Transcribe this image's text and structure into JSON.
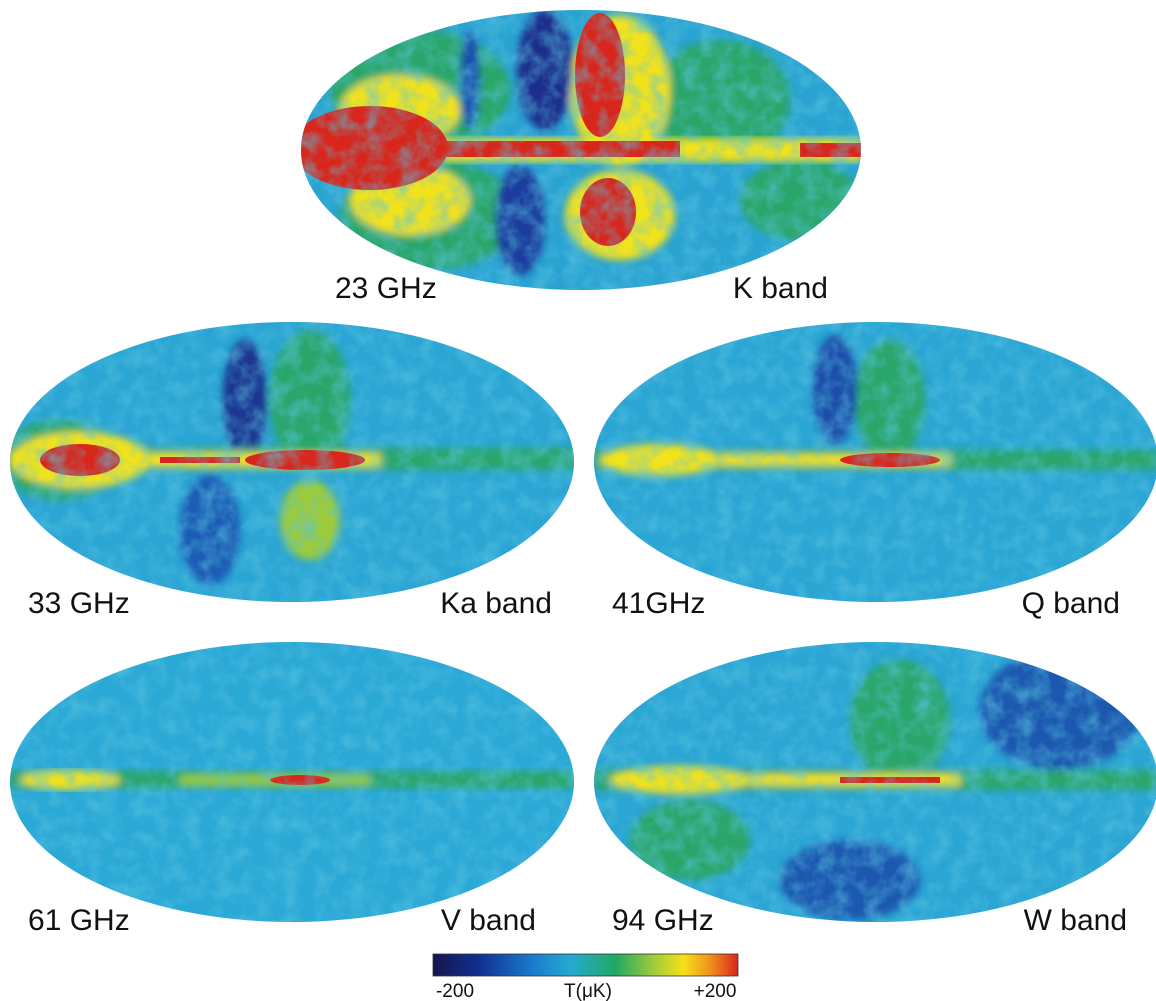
{
  "panels": [
    {
      "frequency": "23 GHz",
      "band": "K band"
    },
    {
      "frequency": "33 GHz",
      "band": "Ka band"
    },
    {
      "frequency": "41GHz",
      "band": "Q band"
    },
    {
      "frequency": "61 GHz",
      "band": "V band"
    },
    {
      "frequency": "94 GHz",
      "band": "W band"
    }
  ],
  "colorbar": {
    "min_label": "-200",
    "unit_label": "T(μK)",
    "max_label": "+200"
  }
}
